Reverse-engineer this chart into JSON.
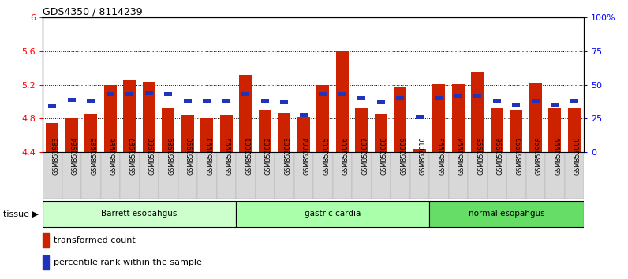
{
  "title": "GDS4350 / 8114239",
  "samples": [
    "GSM851983",
    "GSM851984",
    "GSM851985",
    "GSM851986",
    "GSM851987",
    "GSM851988",
    "GSM851989",
    "GSM851990",
    "GSM851991",
    "GSM851992",
    "GSM852001",
    "GSM852002",
    "GSM852003",
    "GSM852004",
    "GSM852005",
    "GSM852006",
    "GSM852007",
    "GSM852008",
    "GSM852009",
    "GSM852010",
    "GSM851993",
    "GSM851994",
    "GSM851995",
    "GSM851996",
    "GSM851997",
    "GSM851998",
    "GSM851999",
    "GSM852000"
  ],
  "red_values": [
    4.75,
    4.8,
    4.85,
    5.2,
    5.26,
    5.23,
    4.92,
    4.84,
    4.8,
    4.84,
    5.32,
    4.9,
    4.87,
    4.82,
    5.2,
    5.6,
    4.92,
    4.85,
    5.18,
    4.44,
    5.21,
    5.21,
    5.35,
    4.92,
    4.9,
    5.22,
    4.92,
    4.92
  ],
  "blue_percentiles": [
    34,
    39,
    38,
    43,
    43,
    44,
    43,
    38,
    38,
    38,
    43,
    38,
    37,
    27,
    43,
    43,
    40,
    37,
    40,
    26,
    40,
    42,
    42,
    38,
    35,
    38,
    35,
    38
  ],
  "groups": [
    {
      "label": "Barrett esopahgus",
      "start": 0,
      "end": 9,
      "color": "#ccffcc"
    },
    {
      "label": "gastric cardia",
      "start": 10,
      "end": 19,
      "color": "#aaffaa"
    },
    {
      "label": "normal esopahgus",
      "start": 20,
      "end": 27,
      "color": "#66dd66"
    }
  ],
  "ylim_left": [
    4.4,
    6.0
  ],
  "yticks_left": [
    4.4,
    4.8,
    5.2,
    5.6,
    6.0
  ],
  "ytick_labels_left": [
    "4.4",
    "4.8",
    "5.2",
    "5.6",
    "6"
  ],
  "ylim_right": [
    0,
    100
  ],
  "yticks_right": [
    0,
    25,
    50,
    75,
    100
  ],
  "ytick_labels_right": [
    "0",
    "25",
    "50",
    "75",
    "100%"
  ],
  "bar_color": "#cc2200",
  "blue_color": "#2233bb",
  "base_value": 4.4,
  "legend_red": "transformed count",
  "legend_blue": "percentile rank within the sample",
  "tissue_label": "tissue",
  "label_bg_color": "#c8c8c8",
  "chart_bg": "#ffffff"
}
